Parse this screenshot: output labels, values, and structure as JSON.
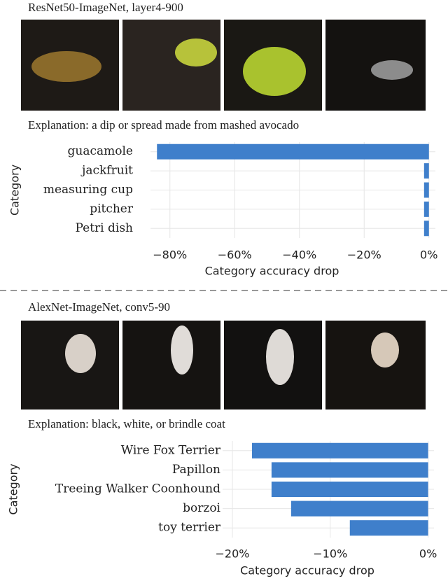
{
  "chart_data": [
    {
      "type": "barh",
      "title": "ResNet50-ImageNet, layer4-900",
      "annotation": "Explanation: a dip or spread made from mashed avocado",
      "categories": [
        "guacamole",
        "jackfruit",
        "measuring cup",
        "pitcher",
        "Petri dish"
      ],
      "values": [
        -84,
        -1.5,
        -1.5,
        -1.5,
        -1.5
      ],
      "color": "#3f7fcb",
      "ylabel": "Category",
      "xlabel": "Category accuracy drop",
      "xlim": [
        -86,
        2
      ],
      "xticks": [
        {
          "value": -80,
          "label": "−80%"
        },
        {
          "value": -60,
          "label": "−60%"
        },
        {
          "value": -40,
          "label": "−40%"
        },
        {
          "value": -20,
          "label": "−20%"
        },
        {
          "value": 0,
          "label": "0%"
        }
      ],
      "grid": true
    },
    {
      "type": "barh",
      "title": "AlexNet-ImageNet, conv5-90",
      "annotation": "Explanation: black, white, or brindle coat",
      "categories": [
        "Wire Fox Terrier",
        "Papillon",
        "Treeing Walker Coonhound",
        "borzoi",
        "toy terrier"
      ],
      "values": [
        -18,
        -16,
        -16,
        -14,
        -8
      ],
      "color": "#3f7fcb",
      "ylabel": "Category",
      "xlabel": "Category accuracy drop",
      "xlim": [
        -21,
        0.6
      ],
      "xticks": [
        {
          "value": -20,
          "label": "−20%"
        },
        {
          "value": -10,
          "label": "−10%"
        },
        {
          "value": 0,
          "label": "0%"
        }
      ],
      "grid": true
    }
  ]
}
